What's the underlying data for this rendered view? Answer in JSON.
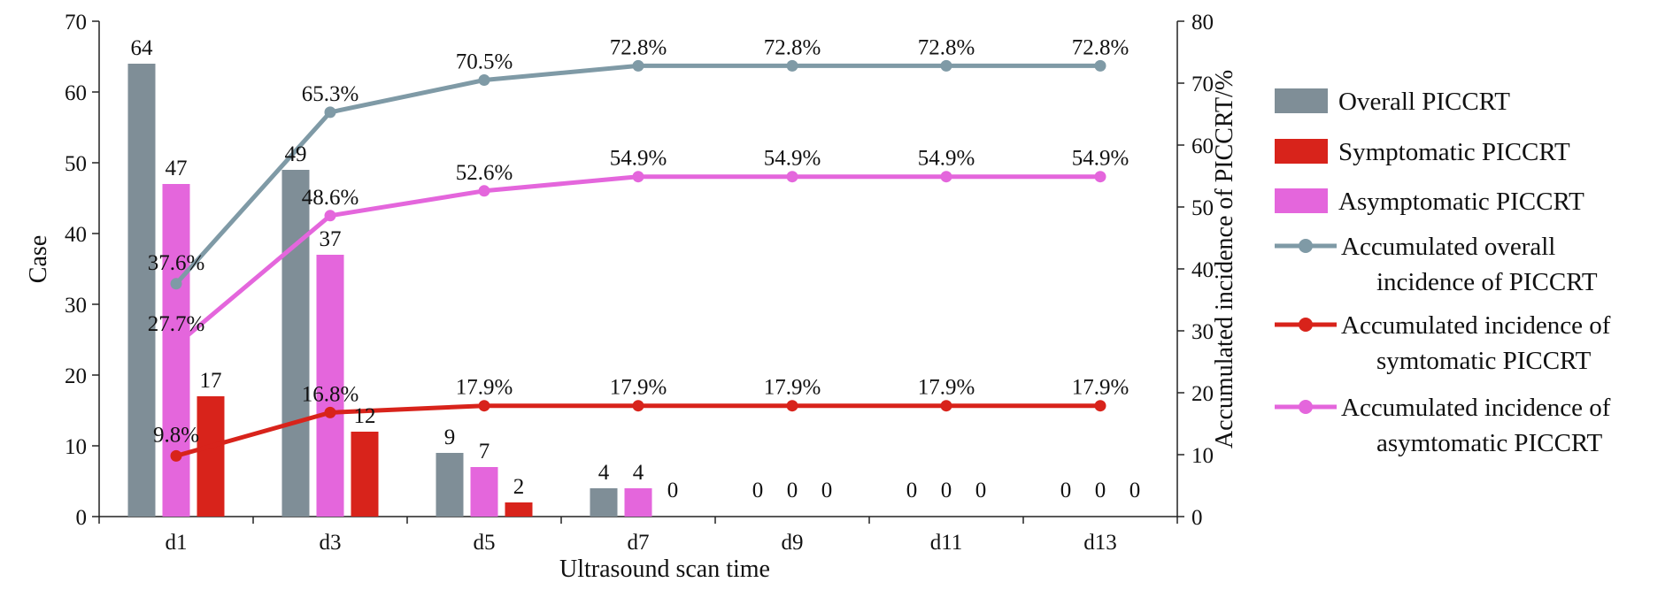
{
  "chart_data": {
    "type": "bar+line",
    "xlabel": "Ultrasound scan time",
    "ylabel": "Case",
    "y2label": "Accumulated incidence of PICCRT/%",
    "categories": [
      "d1",
      "d3",
      "d5",
      "d7",
      "d9",
      "d11",
      "d13"
    ],
    "ylim": [
      0,
      70
    ],
    "y2lim": [
      0,
      80
    ],
    "yticks": [
      "0",
      "10",
      "20",
      "30",
      "40",
      "50",
      "60",
      "70"
    ],
    "y2ticks": [
      "0",
      "10",
      "20",
      "30",
      "40",
      "50",
      "60",
      "70",
      "80"
    ],
    "bar_series": [
      {
        "name": "Overall PICCRT",
        "color": "#7f8e97",
        "values": [
          64,
          49,
          9,
          4,
          0,
          0,
          0
        ],
        "labels": [
          "64",
          "49",
          "9",
          "4",
          "0",
          "0",
          "0"
        ]
      },
      {
        "name": "Symptomatic PICCRT",
        "color": "#d8231b",
        "values": [
          17,
          12,
          2,
          0,
          null,
          null,
          null
        ],
        "labels": [
          "17",
          "12",
          "2",
          "0",
          "0",
          "0",
          "0"
        ]
      },
      {
        "name": "Asymptomatic PICCRT",
        "color": "#e466dc",
        "values": [
          47,
          37,
          7,
          4,
          0,
          0,
          0
        ],
        "labels": [
          "47",
          "37",
          "7",
          "4",
          "0",
          "0",
          "0"
        ]
      }
    ],
    "line_series": [
      {
        "name": "Accumulated overall incidence of PICCRT",
        "legend_lines": [
          "Accumulated overall",
          "incidence of PICCRT"
        ],
        "color": "#7f9aa6",
        "values": [
          37.6,
          65.3,
          70.5,
          72.8,
          72.8,
          72.8,
          72.8
        ],
        "labels": [
          "37.6%",
          "65.3%",
          "70.5%",
          "72.8%",
          "72.8%",
          "72.8%",
          "72.8%"
        ]
      },
      {
        "name": "Accumulated incidence of symtomatic PICCRT",
        "legend_lines": [
          "Accumulated incidence of",
          "symtomatic PICCRT"
        ],
        "color": "#d8231b",
        "values": [
          9.8,
          16.8,
          17.9,
          17.9,
          17.9,
          17.9,
          17.9
        ],
        "labels": [
          "9.8%",
          "16.8%",
          "17.9%",
          "17.9%",
          "17.9%",
          "17.9%",
          "17.9%"
        ]
      },
      {
        "name": "Accumulated incidence of asymtomatic PICCRT",
        "legend_lines": [
          "Accumulated incidence of",
          "asymtomatic PICCRT"
        ],
        "color": "#e466dc",
        "values": [
          27.7,
          48.6,
          52.6,
          54.9,
          54.9,
          54.9,
          54.9
        ],
        "labels": [
          "27.7%",
          "48.6%",
          "52.6%",
          "54.9%",
          "54.9%",
          "54.9%",
          "54.9%"
        ]
      }
    ],
    "legend_position": "right",
    "grid": false
  }
}
